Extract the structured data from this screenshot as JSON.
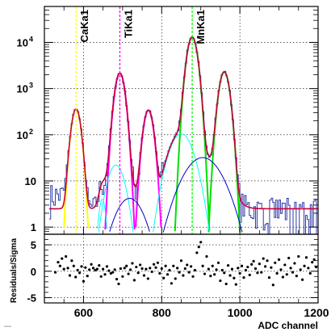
{
  "chart_data": [
    {
      "type": "line",
      "panel": "spectrum",
      "yscale": "log",
      "xlim": [
        500,
        1200
      ],
      "ylim": [
        0.7,
        60000
      ],
      "xlabel": "",
      "ylabel": "",
      "grid": true,
      "y_ticks": [
        {
          "value": 1,
          "label": "1"
        },
        {
          "value": 10,
          "label": "10"
        },
        {
          "value": 100,
          "label": "10",
          "sup": "2"
        },
        {
          "value": 1000,
          "label": "10",
          "sup": "3"
        },
        {
          "value": 10000,
          "label": "10",
          "sup": "4"
        }
      ],
      "x_ticks": [
        600,
        800,
        1000,
        1200
      ],
      "lines_marked": [
        {
          "name": "CaKa1",
          "x": 581,
          "color": "#ffff00"
        },
        {
          "name": "TiKa1",
          "x": 693,
          "color": "#ff00ff"
        },
        {
          "name": "MnKa1",
          "x": 878,
          "color": "#00ff00"
        }
      ],
      "series": [
        {
          "role": "data histogram",
          "color": "#2e3aa6"
        },
        {
          "role": "total fit",
          "color": "#c8003c"
        },
        {
          "role": "Ca peak",
          "color": "#ffff00",
          "peaks": [
            {
              "center": 581,
              "amp": 360,
              "sigma": 9
            }
          ]
        },
        {
          "role": "Ti peaks",
          "color": "#ff00ff",
          "peaks": [
            {
              "center": 693,
              "amp": 2150,
              "sigma": 9.5
            },
            {
              "center": 766,
              "amp": 340,
              "sigma": 9.5
            }
          ]
        },
        {
          "role": "Mn peaks",
          "color": "#00e000",
          "peaks": [
            {
              "center": 878,
              "amp": 13000,
              "sigma": 10
            },
            {
              "center": 960,
              "amp": 2300,
              "sigma": 10
            }
          ]
        },
        {
          "role": "Ca escape",
          "color": "#00ffff",
          "peaks": [
            {
              "center": 648,
              "amp": 4,
              "sigma": 7
            }
          ]
        },
        {
          "role": "Ti escape",
          "color": "#00ffff",
          "peaks": [
            {
              "center": 683,
              "amp": 22,
              "sigma": 17
            },
            {
              "center": 850,
              "amp": 105,
              "sigma": 23
            }
          ]
        },
        {
          "role": "broad components",
          "color": "#0000c8",
          "peaks": [
            {
              "center": 718,
              "amp": 4.2,
              "sigma": 28
            },
            {
              "center": 905,
              "amp": 32,
              "sigma": 37
            }
          ]
        }
      ],
      "background": 2.5
    },
    {
      "type": "scatter",
      "panel": "residuals",
      "xlim": [
        500,
        1200
      ],
      "ylim": [
        -6,
        7
      ],
      "ylabel": "Residuals/Sigma",
      "xlabel": "ADC channel",
      "grid": true,
      "y_ticks": [
        {
          "value": 5,
          "label": "5"
        },
        {
          "value": 0,
          "label": "0"
        },
        {
          "value": -5,
          "label": "-5"
        }
      ],
      "x_ticks": [
        {
          "value": 600,
          "label": "600"
        },
        {
          "value": 800,
          "label": "800"
        },
        {
          "value": 1000,
          "label": "1000"
        },
        {
          "value": 1200,
          "label": "1200"
        }
      ],
      "points": [
        [
          528,
          -0.2
        ],
        [
          535,
          1.7
        ],
        [
          540,
          1.0
        ],
        [
          545,
          2.4
        ],
        [
          550,
          0.4
        ],
        [
          555,
          2.8
        ],
        [
          560,
          0.6
        ],
        [
          565,
          -0.8
        ],
        [
          570,
          2.0
        ],
        [
          575,
          1.0
        ],
        [
          580,
          -1.1
        ],
        [
          585,
          0.2
        ],
        [
          590,
          -0.3
        ],
        [
          595,
          0.9
        ],
        [
          600,
          -1.9
        ],
        [
          605,
          0.7
        ],
        [
          610,
          -0.9
        ],
        [
          615,
          0.3
        ],
        [
          620,
          1.3
        ],
        [
          625,
          0.6
        ],
        [
          630,
          0.2
        ],
        [
          635,
          0.4
        ],
        [
          640,
          1.1
        ],
        [
          645,
          -1.0
        ],
        [
          650,
          0.4
        ],
        [
          655,
          -0.6
        ],
        [
          660,
          0.9
        ],
        [
          665,
          0.1
        ],
        [
          670,
          -0.4
        ],
        [
          675,
          -0.2
        ],
        [
          680,
          0.3
        ],
        [
          685,
          -1.5
        ],
        [
          690,
          -2.4
        ],
        [
          695,
          0.5
        ],
        [
          700,
          -1.0
        ],
        [
          705,
          0.6
        ],
        [
          710,
          1.0
        ],
        [
          715,
          -0.5
        ],
        [
          720,
          0.3
        ],
        [
          725,
          1.5
        ],
        [
          730,
          -1.7
        ],
        [
          735,
          0.8
        ],
        [
          740,
          -0.3
        ],
        [
          745,
          1.2
        ],
        [
          750,
          0.5
        ],
        [
          755,
          -0.8
        ],
        [
          760,
          0.4
        ],
        [
          765,
          -1.4
        ],
        [
          770,
          0.6
        ],
        [
          775,
          -0.1
        ],
        [
          780,
          1.3
        ],
        [
          785,
          0.7
        ],
        [
          790,
          1.6
        ],
        [
          795,
          -0.4
        ],
        [
          800,
          0.5
        ],
        [
          805,
          -1.3
        ],
        [
          810,
          1.0
        ],
        [
          815,
          -0.6
        ],
        [
          820,
          0.2
        ],
        [
          825,
          -2.3
        ],
        [
          830,
          1.0
        ],
        [
          835,
          -1.4
        ],
        [
          840,
          0.6
        ],
        [
          845,
          -0.2
        ],
        [
          850,
          2.0
        ],
        [
          855,
          -0.8
        ],
        [
          860,
          0.5
        ],
        [
          865,
          1.2
        ],
        [
          870,
          -0.2
        ],
        [
          875,
          0.9
        ],
        [
          880,
          -1.0
        ],
        [
          885,
          0.2
        ],
        [
          890,
          3.5
        ],
        [
          895,
          4.6
        ],
        [
          900,
          5.5
        ],
        [
          905,
          1.0
        ],
        [
          910,
          -0.5
        ],
        [
          915,
          2.8
        ],
        [
          920,
          0.4
        ],
        [
          925,
          -0.9
        ],
        [
          930,
          1.0
        ],
        [
          935,
          -0.6
        ],
        [
          940,
          0.3
        ],
        [
          945,
          1.6
        ],
        [
          950,
          -1.8
        ],
        [
          955,
          0.2
        ],
        [
          960,
          -0.3
        ],
        [
          965,
          -2.4
        ],
        [
          970,
          1.1
        ],
        [
          975,
          -0.8
        ],
        [
          980,
          0.4
        ],
        [
          985,
          -1.3
        ],
        [
          990,
          -2.5
        ],
        [
          995,
          0.6
        ],
        [
          1000,
          -0.4
        ],
        [
          1005,
          1.0
        ],
        [
          1010,
          -1.2
        ],
        [
          1015,
          0.2
        ],
        [
          1020,
          0.8
        ],
        [
          1025,
          -0.7
        ],
        [
          1030,
          1.3
        ],
        [
          1035,
          1.9
        ],
        [
          1040,
          0.5
        ],
        [
          1045,
          -0.3
        ],
        [
          1050,
          1.4
        ],
        [
          1055,
          -0.2
        ],
        [
          1060,
          2.4
        ],
        [
          1065,
          0.9
        ],
        [
          1070,
          2.0
        ],
        [
          1075,
          -1.2
        ],
        [
          1080,
          0.7
        ],
        [
          1085,
          -2.6
        ],
        [
          1090,
          1.6
        ],
        [
          1095,
          -0.4
        ],
        [
          1100,
          2.2
        ],
        [
          1105,
          0.3
        ],
        [
          1110,
          -1.1
        ],
        [
          1115,
          1.2
        ],
        [
          1120,
          -0.6
        ],
        [
          1125,
          2.5
        ],
        [
          1130,
          0.6
        ],
        [
          1135,
          -0.2
        ],
        [
          1140,
          1.5
        ],
        [
          1145,
          -0.9
        ],
        [
          1150,
          2.8
        ],
        [
          1155,
          0.3
        ],
        [
          1160,
          -1.6
        ],
        [
          1165,
          1.0
        ],
        [
          1170,
          2.6
        ],
        [
          1175,
          0.6
        ],
        [
          1180,
          -0.4
        ],
        [
          1185,
          1.7
        ],
        [
          1190,
          2.2
        ],
        [
          1195,
          0.8
        ]
      ]
    }
  ]
}
